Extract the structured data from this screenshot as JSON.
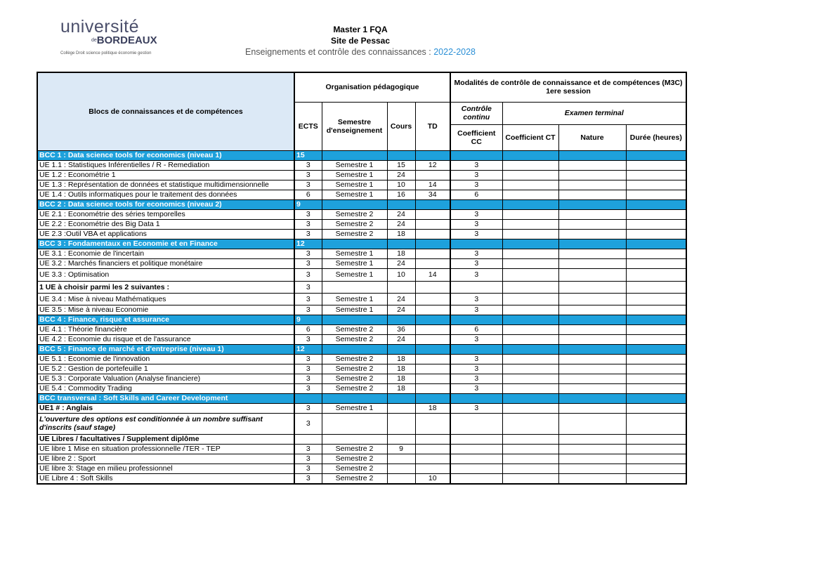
{
  "logo": {
    "line1": "université",
    "prefix": "de",
    "line2": "BORDEAUX",
    "tagline": "Collège Droit science politique économie gestion"
  },
  "header": {
    "title": "Master 1 FQA",
    "site": "Site de Pessac",
    "subtitle": "Enseignements et contrôle des connaissances : ",
    "years": "2022-2028"
  },
  "table": {
    "headers": {
      "blocs": "Blocs de connaissances et de compétences",
      "organisation": "Organisation pédagogique",
      "modalites": "Modalités de contrôle de connaissance et de compétences (M3C) 1ere session",
      "ects": "ECTS",
      "semestre": "Semestre d'enseignement",
      "cours": "Cours",
      "td": "TD",
      "controle": "Contrôle continu",
      "examen": "Examen terminal",
      "coef_cc": "Coefficient CC",
      "coef_ct": "Coefficient CT",
      "nature": "Nature",
      "duree": "Durée (heures)"
    },
    "blocks": [
      {
        "title": "BCC 1 : Data science tools for economics (niveau 1)",
        "ects": 15,
        "rows": [
          [
            "UE 1.1 : Statistiques Inférentielles / R - Remediation",
            3,
            "Semestre 1",
            15,
            12,
            3
          ],
          [
            "UE 1.2 : Econométrie 1",
            3,
            "Semestre 1",
            24,
            null,
            3
          ],
          [
            "UE 1.3 : Représentation de données et statistique multidimensionnelle",
            3,
            "Semestre 1",
            10,
            14,
            3
          ],
          [
            "UE 1.4 : Outils informatiques pour le traitement des données",
            6,
            "Semestre 1",
            16,
            34,
            6
          ]
        ]
      },
      {
        "title": "BCC 2 : Data science tools for economics (niveau 2)",
        "ects": 9,
        "rows": [
          [
            "UE 2.1 : Econométrie des séries temporelles",
            3,
            "Semestre 2",
            24,
            null,
            3
          ],
          [
            "UE 2.2 : Econométrie des Big Data 1",
            3,
            "Semestre 2",
            24,
            null,
            3
          ],
          [
            "UE 2.3 :Outil VBA et applications",
            3,
            "Semestre 2",
            18,
            null,
            3
          ]
        ]
      },
      {
        "title": "BCC 3 : Fondamentaux en Economie et en Finance",
        "ects": 12,
        "rows": [
          [
            "UE 3.1 : Economie de l'incertain",
            3,
            "Semestre 1",
            18,
            null,
            3
          ],
          [
            "UE 3.2 : Marchés financiers et politique monétaire",
            3,
            "Semestre 1",
            24,
            null,
            3
          ],
          [
            "UE 3.3 : Optimisation",
            3,
            "Semestre 1",
            10,
            14,
            3
          ],
          [
            "1 UE à choisir parmi les 2 suivantes :",
            3,
            null,
            null,
            null,
            null
          ],
          [
            "UE 3.4 : Mise à niveau Mathématiques",
            3,
            "Semestre 1",
            24,
            null,
            3
          ],
          [
            "UE 3.5 : Mise à niveau Economie",
            3,
            "Semestre 1",
            24,
            null,
            3
          ]
        ]
      },
      {
        "title": "BCC 4 : Finance, risque et assurance",
        "ects": 9,
        "rows": [
          [
            "UE 4.1 : Théorie financière",
            6,
            "Semestre 2",
            36,
            null,
            6
          ],
          [
            "UE 4.2 : Economie du risque et de l'assurance",
            3,
            "Semestre 2",
            24,
            null,
            3
          ]
        ]
      },
      {
        "title": "BCC 5 : Finance de marché et d'entreprise (niveau 1)",
        "ects": 12,
        "rows": [
          [
            "UE 5.1 : Economie de l'innovation",
            3,
            "Semestre 2",
            18,
            null,
            3
          ],
          [
            "UE 5.2 : Gestion de portefeuille 1",
            3,
            "Semestre 2",
            18,
            null,
            3
          ],
          [
            "UE 5.3 : Corporate Valuation (Analyse financiere)",
            3,
            "Semestre 2",
            18,
            null,
            3
          ],
          [
            "UE 5.4 : Commodity Trading",
            3,
            "Semestre 2",
            18,
            null,
            3
          ]
        ]
      },
      {
        "title": "BCC  transversal :  Soft Skills and Career Development",
        "ects": null,
        "rows": [
          [
            "UE1 # : Anglais",
            3,
            "Semestre 1",
            null,
            18,
            3
          ],
          [
            "L'ouverture des options est conditionnée à un nombre suffisant d'inscrits (sauf stage)",
            3,
            null,
            null,
            null,
            null
          ],
          [
            "UE Libres / facultatives / Supplement diplôme",
            null,
            null,
            null,
            null,
            null
          ],
          [
            "UE libre 1 Mise en situation professionnelle /TER - TEP",
            3,
            "Semestre 2",
            9,
            null,
            null
          ],
          [
            "UE libre 2 :  Sport",
            3,
            "Semestre 2",
            null,
            null,
            null
          ],
          [
            "UE libre 3: Stage en milieu professionnel",
            3,
            "Semestre 2",
            null,
            null,
            null
          ],
          [
            "UE Libre 4 : Soft Skills",
            3,
            "Semestre 2",
            null,
            10,
            null
          ]
        ]
      }
    ]
  }
}
